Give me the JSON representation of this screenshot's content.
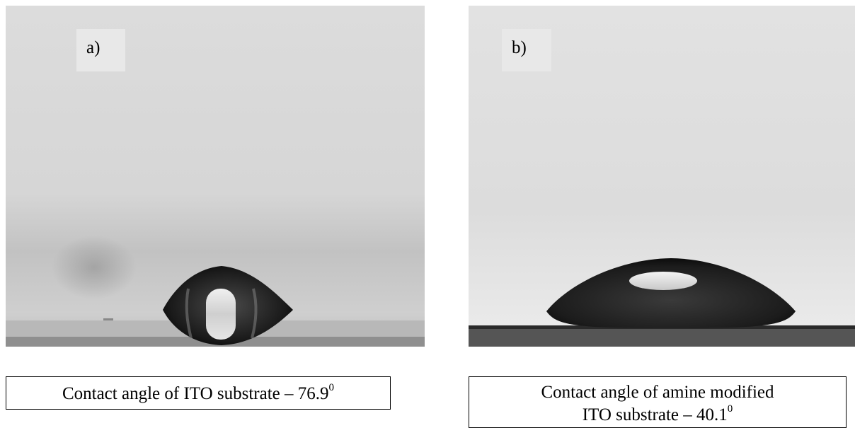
{
  "panels": [
    {
      "label": "a)",
      "caption": {
        "prefix": "Contact angle of ITO substrate – 76.9",
        "superscript": "0"
      }
    },
    {
      "label": "b)",
      "caption": {
        "line1": "Contact angle of amine modified",
        "line2_prefix": "ITO substrate – 40.1",
        "superscript": "0"
      }
    }
  ]
}
